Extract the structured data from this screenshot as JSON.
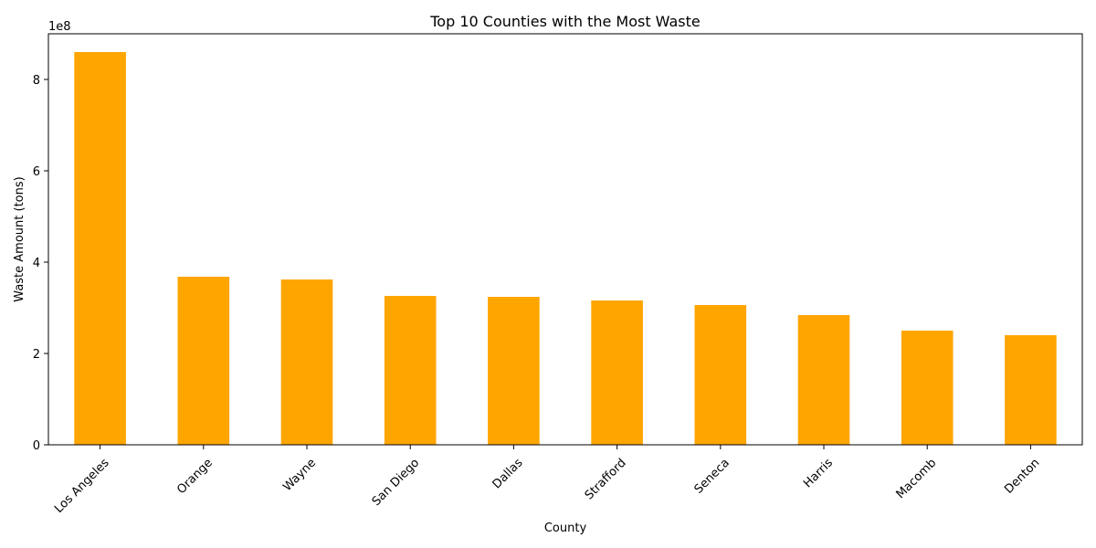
{
  "chart_data": {
    "type": "bar",
    "title": "Top 10 Counties with the Most Waste",
    "xlabel": "County",
    "ylabel": "Waste Amount (tons)",
    "offset_label": "1e8",
    "categories": [
      "Los Angeles",
      "Orange",
      "Wayne",
      "San Diego",
      "Dallas",
      "Strafford",
      "Seneca",
      "Harris",
      "Macomb",
      "Denton"
    ],
    "values": [
      860000000,
      368000000,
      362000000,
      326000000,
      324000000,
      316000000,
      306000000,
      284000000,
      250000000,
      240000000
    ],
    "ylim": [
      0,
      900000000
    ],
    "yticks": [
      0,
      200000000,
      400000000,
      600000000,
      800000000
    ],
    "ytick_labels": [
      "0",
      "2",
      "4",
      "6",
      "8"
    ],
    "bar_color": "#ffa500",
    "grid": false,
    "legend": "none"
  }
}
